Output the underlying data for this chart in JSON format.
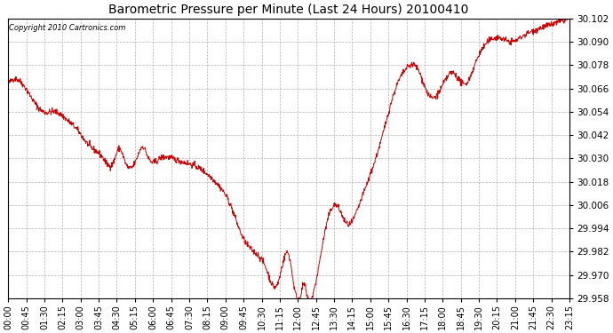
{
  "title": "Barometric Pressure per Minute (Last 24 Hours) 20100410",
  "copyright": "Copyright 2010 Cartronics.com",
  "line_color": "#cc0000",
  "bg_color": "#ffffff",
  "grid_color": "#aaaaaa",
  "ylim": [
    29.958,
    30.102
  ],
  "yticks": [
    29.958,
    29.97,
    29.982,
    29.994,
    30.006,
    30.018,
    30.03,
    30.042,
    30.054,
    30.066,
    30.078,
    30.09,
    30.102
  ],
  "xtick_labels": [
    "00:00",
    "00:45",
    "01:30",
    "02:15",
    "03:00",
    "03:45",
    "04:30",
    "05:15",
    "06:00",
    "06:45",
    "07:30",
    "08:15",
    "09:00",
    "09:45",
    "10:30",
    "11:15",
    "12:00",
    "12:45",
    "13:30",
    "14:15",
    "15:00",
    "15:45",
    "16:30",
    "17:15",
    "18:00",
    "18:45",
    "19:30",
    "20:15",
    "21:00",
    "21:45",
    "22:30",
    "23:15"
  ],
  "key_points": {
    "n_minutes": 1440,
    "waypoints_x": [
      0,
      45,
      90,
      120,
      150,
      180,
      210,
      240,
      270,
      285,
      300,
      330,
      345,
      360,
      390,
      420,
      450,
      480,
      510,
      540,
      570,
      600,
      630,
      660,
      690,
      720,
      735,
      750,
      760,
      765,
      780,
      810,
      840,
      870,
      900,
      960,
      990,
      1020,
      1050,
      1080,
      1110,
      1140,
      1170,
      1200,
      1230,
      1260,
      1290,
      1320,
      1350,
      1380,
      1410,
      1439
    ],
    "waypoints_y": [
      30.068,
      30.066,
      30.054,
      30.054,
      30.05,
      30.044,
      30.036,
      30.031,
      30.028,
      30.035,
      30.028,
      30.03,
      30.036,
      30.03,
      30.03,
      30.03,
      30.028,
      30.026,
      30.022,
      30.016,
      30.006,
      29.99,
      29.982,
      29.974,
      29.965,
      29.98,
      29.962,
      29.96,
      29.965,
      29.96,
      29.959,
      29.99,
      30.006,
      29.996,
      30.006,
      30.042,
      30.064,
      30.076,
      30.076,
      30.062,
      30.066,
      30.074,
      30.068,
      30.08,
      30.09,
      30.092,
      30.09,
      30.093,
      30.096,
      30.098,
      30.1,
      30.102
    ]
  }
}
